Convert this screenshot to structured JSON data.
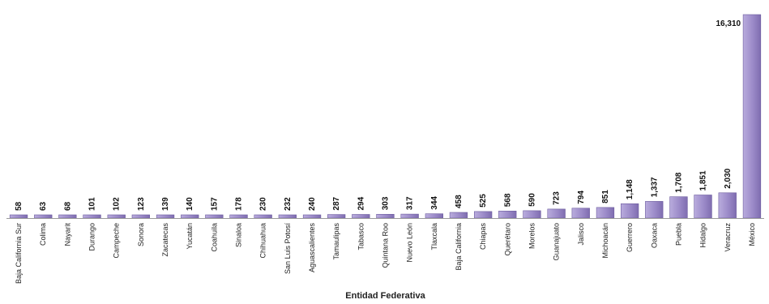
{
  "chart_data": {
    "type": "bar",
    "title": "",
    "xlabel": "Entidad Federativa",
    "ylabel": "",
    "categories": [
      "Baja California Sur",
      "Colima",
      "Nayarit",
      "Durango",
      "Campeche",
      "Sonora",
      "Zacatecas",
      "Yucatán",
      "Coahuila",
      "Sinaloa",
      "Chihuahua",
      "San Luis Potosí",
      "Aguascalientes",
      "Tamaulipas",
      "Tabasco",
      "Quintana Roo",
      "Nuevo León",
      "Tlaxcala",
      "Baja California",
      "Chiapas",
      "Querétaro",
      "Morelos",
      "Guanajuato",
      "Jalisco",
      "Michoacán",
      "Guerrero",
      "Oaxaca",
      "Puebla",
      "Hidalgo",
      "Veracruz",
      "México"
    ],
    "values": [
      58,
      63,
      68,
      101,
      102,
      123,
      139,
      140,
      157,
      178,
      230,
      232,
      240,
      287,
      294,
      303,
      317,
      344,
      458,
      525,
      568,
      590,
      723,
      794,
      851,
      1148,
      1337,
      1708,
      1851,
      2030,
      16310
    ],
    "value_labels": [
      "58",
      "63",
      "68",
      "101",
      "102",
      "123",
      "139",
      "140",
      "157",
      "178",
      "230",
      "232",
      "240",
      "287",
      "294",
      "303",
      "317",
      "344",
      "458",
      "525",
      "568",
      "590",
      "723",
      "794",
      "851",
      "1,148",
      "1,337",
      "1,708",
      "1,851",
      "2,030",
      "16,310"
    ],
    "ylim": [
      0,
      16310
    ],
    "grid": false,
    "bar_color": "#9b8ac8"
  }
}
